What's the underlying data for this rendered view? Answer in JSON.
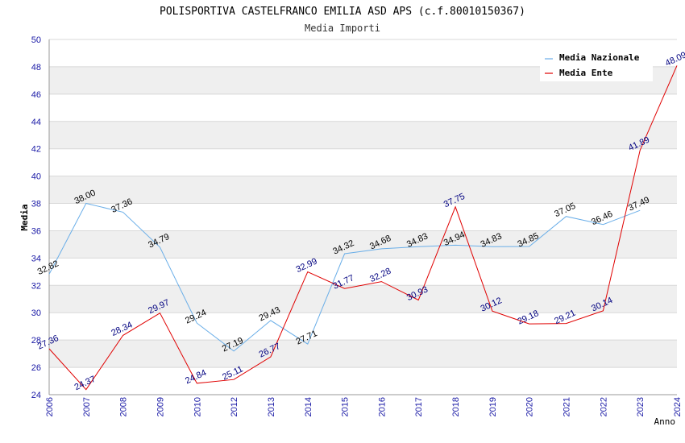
{
  "chart_data": {
    "type": "line",
    "title": "POLISPORTIVA CASTELFRANCO EMILIA ASD APS (c.f.80010150367)",
    "subtitle": "Media Importi",
    "xlabel": "Anno",
    "ylabel": "Media",
    "ylim": [
      24,
      50
    ],
    "yticks": [
      "24",
      "26",
      "28",
      "30",
      "32",
      "34",
      "36",
      "38",
      "40",
      "42",
      "44",
      "46",
      "48",
      "50"
    ],
    "categories": [
      "2006",
      "2007",
      "2008",
      "2009",
      "2010",
      "2012",
      "2013",
      "2014",
      "2015",
      "2016",
      "2017",
      "2018",
      "2019",
      "2020",
      "2021",
      "2022",
      "2023",
      "2024"
    ],
    "grid": true,
    "legend_position": "top-right",
    "series": [
      {
        "name": "Media Nazionale",
        "color": "#6aaee8",
        "values": [
          32.82,
          38.0,
          37.36,
          34.79,
          29.24,
          27.19,
          29.43,
          27.71,
          34.32,
          34.68,
          34.83,
          34.94,
          34.83,
          34.85,
          37.05,
          36.46,
          37.49,
          null
        ],
        "labels": [
          "32.82",
          "38.00",
          "37.36",
          "34.79",
          "29.24",
          "27.19",
          "29.43",
          "27.71",
          "34.32",
          "34.68",
          "34.83",
          "34.94",
          "34.83",
          "34.85",
          "37.05",
          "36.46",
          "37.49",
          ""
        ]
      },
      {
        "name": "Media Ente",
        "color": "#e00000",
        "values": [
          27.36,
          24.37,
          28.34,
          29.97,
          24.84,
          25.11,
          26.77,
          32.99,
          31.77,
          32.28,
          30.93,
          37.75,
          30.12,
          29.18,
          29.21,
          30.14,
          41.89,
          48.09
        ],
        "labels": [
          "27.36",
          "24.37",
          "28.34",
          "29.97",
          "24.84",
          "25.11",
          "26.77",
          "32.99",
          "31.77",
          "32.28",
          "30.93",
          "37.75",
          "30.12",
          "29.18",
          "29.21",
          "30.14",
          "41.89",
          "48.09"
        ]
      }
    ],
    "colors": {
      "band": "#efefef",
      "gridline": "#d8d8d8",
      "axis": "#999999"
    }
  }
}
